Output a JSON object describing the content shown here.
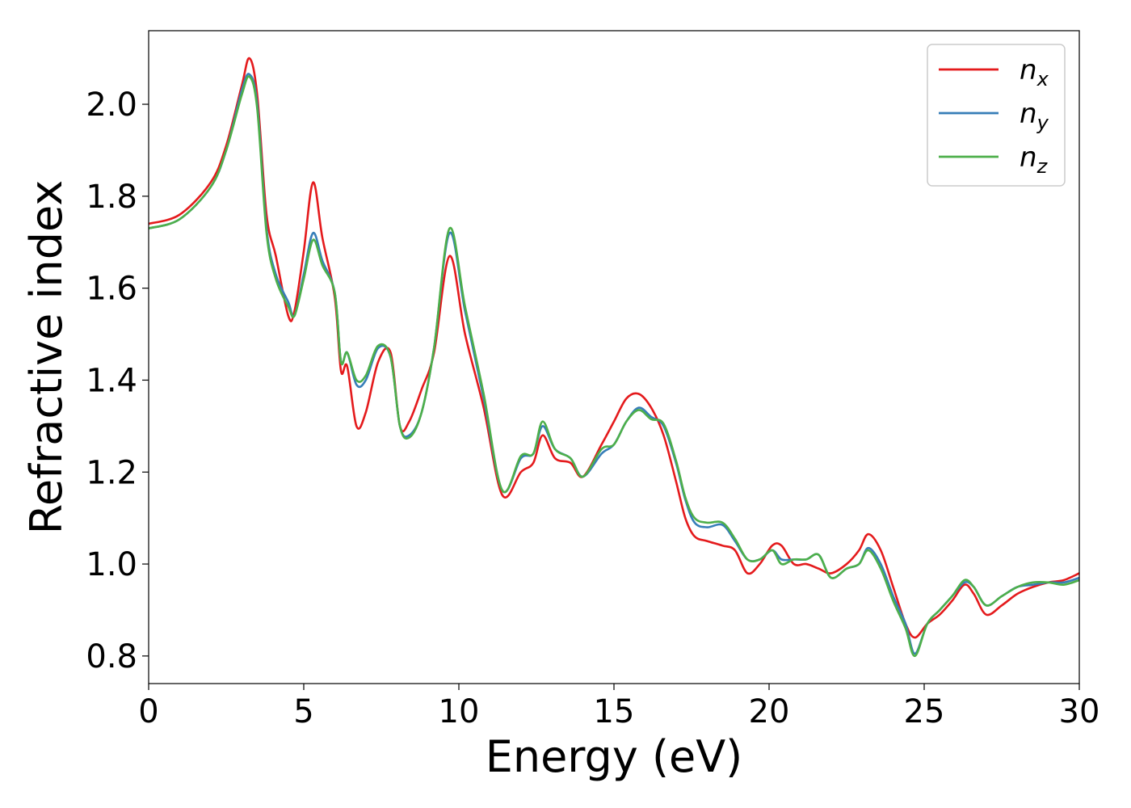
{
  "chart_data": {
    "type": "line",
    "title": "",
    "xlabel": "Energy (eV)",
    "ylabel": "Refractive index",
    "xlim": [
      0,
      30
    ],
    "ylim": [
      0.74,
      2.16
    ],
    "xticks": [
      0,
      5,
      10,
      15,
      20,
      25,
      30
    ],
    "yticks": [
      0.8,
      1.0,
      1.2,
      1.4,
      1.6,
      1.8,
      2.0
    ],
    "xtick_labels": [
      "0",
      "5",
      "10",
      "15",
      "20",
      "25",
      "30"
    ],
    "ytick_labels": [
      "0.8",
      "1.0",
      "1.2",
      "1.4",
      "1.6",
      "1.8",
      "2.0"
    ],
    "grid": false,
    "legend_placement": "top-right",
    "series": [
      {
        "name": "n_x",
        "label_base": "n",
        "label_sub": "x",
        "color": "#e41a1c",
        "x": [
          0,
          1,
          2,
          2.5,
          3.0,
          3.25,
          3.5,
          3.8,
          4.1,
          4.5,
          4.7,
          5.0,
          5.3,
          5.6,
          6.0,
          6.2,
          6.4,
          6.7,
          7.0,
          7.4,
          7.8,
          8.1,
          8.4,
          8.8,
          9.2,
          9.7,
          10.2,
          10.8,
          11.4,
          12.0,
          12.4,
          12.7,
          13.1,
          13.6,
          14.0,
          14.6,
          15.0,
          15.4,
          15.8,
          16.2,
          16.6,
          17.0,
          17.3,
          17.6,
          18.0,
          18.5,
          18.9,
          19.3,
          19.7,
          20.1,
          20.4,
          20.8,
          21.2,
          21.6,
          22.0,
          22.5,
          22.9,
          23.2,
          23.6,
          24.0,
          24.4,
          24.7,
          25.1,
          25.5,
          25.9,
          26.3,
          26.6,
          27.0,
          27.5,
          28.0,
          28.5,
          29.0,
          29.5,
          30.0
        ],
        "y": [
          1.74,
          1.76,
          1.83,
          1.91,
          2.04,
          2.1,
          2.02,
          1.76,
          1.67,
          1.54,
          1.55,
          1.68,
          1.83,
          1.71,
          1.58,
          1.42,
          1.43,
          1.3,
          1.33,
          1.44,
          1.46,
          1.3,
          1.31,
          1.38,
          1.46,
          1.67,
          1.5,
          1.34,
          1.15,
          1.2,
          1.22,
          1.28,
          1.23,
          1.22,
          1.19,
          1.26,
          1.31,
          1.36,
          1.37,
          1.34,
          1.28,
          1.18,
          1.1,
          1.06,
          1.05,
          1.04,
          1.03,
          0.98,
          1.0,
          1.04,
          1.04,
          1.0,
          1.0,
          0.99,
          0.98,
          1.0,
          1.03,
          1.065,
          1.03,
          0.95,
          0.87,
          0.84,
          0.87,
          0.89,
          0.92,
          0.955,
          0.935,
          0.89,
          0.91,
          0.935,
          0.95,
          0.96,
          0.965,
          0.98
        ]
      },
      {
        "name": "n_y",
        "label_base": "n",
        "label_sub": "y",
        "color": "#377eb8",
        "x": [
          0,
          1,
          2,
          2.5,
          3.0,
          3.25,
          3.5,
          3.8,
          4.1,
          4.5,
          4.7,
          5.0,
          5.3,
          5.6,
          6.0,
          6.2,
          6.4,
          6.7,
          7.0,
          7.4,
          7.8,
          8.1,
          8.4,
          8.8,
          9.2,
          9.7,
          10.2,
          10.8,
          11.4,
          12.0,
          12.4,
          12.7,
          13.1,
          13.6,
          14.0,
          14.6,
          15.0,
          15.4,
          15.8,
          16.2,
          16.6,
          17.0,
          17.3,
          17.6,
          18.0,
          18.5,
          18.9,
          19.3,
          19.7,
          20.1,
          20.4,
          20.8,
          21.2,
          21.6,
          22.0,
          22.5,
          22.9,
          23.2,
          23.6,
          24.0,
          24.4,
          24.7,
          25.1,
          25.5,
          25.9,
          26.3,
          26.6,
          27.0,
          27.5,
          28.0,
          28.5,
          29.0,
          29.5,
          30.0
        ],
        "y": [
          1.73,
          1.75,
          1.82,
          1.9,
          2.03,
          2.065,
          2.0,
          1.73,
          1.63,
          1.57,
          1.54,
          1.63,
          1.72,
          1.66,
          1.59,
          1.44,
          1.46,
          1.39,
          1.4,
          1.47,
          1.45,
          1.3,
          1.28,
          1.33,
          1.47,
          1.72,
          1.55,
          1.36,
          1.16,
          1.23,
          1.24,
          1.3,
          1.25,
          1.23,
          1.19,
          1.24,
          1.26,
          1.31,
          1.34,
          1.32,
          1.3,
          1.22,
          1.14,
          1.09,
          1.08,
          1.085,
          1.05,
          1.01,
          1.01,
          1.03,
          1.01,
          1.01,
          1.01,
          1.02,
          0.97,
          0.99,
          1.0,
          1.035,
          1.0,
          0.93,
          0.87,
          0.805,
          0.87,
          0.9,
          0.93,
          0.96,
          0.95,
          0.91,
          0.93,
          0.95,
          0.955,
          0.96,
          0.96,
          0.97
        ]
      },
      {
        "name": "n_z",
        "label_base": "n",
        "label_sub": "z",
        "color": "#4daf4a",
        "x": [
          0,
          1,
          2,
          2.5,
          3.0,
          3.25,
          3.5,
          3.8,
          4.1,
          4.5,
          4.7,
          5.0,
          5.3,
          5.6,
          6.0,
          6.2,
          6.4,
          6.7,
          7.0,
          7.4,
          7.8,
          8.1,
          8.4,
          8.8,
          9.2,
          9.7,
          10.2,
          10.8,
          11.4,
          12.0,
          12.4,
          12.7,
          13.1,
          13.6,
          14.0,
          14.6,
          15.0,
          15.4,
          15.8,
          16.2,
          16.6,
          17.0,
          17.3,
          17.6,
          18.0,
          18.5,
          18.9,
          19.3,
          19.7,
          20.1,
          20.4,
          20.8,
          21.2,
          21.6,
          22.0,
          22.5,
          22.9,
          23.2,
          23.6,
          24.0,
          24.4,
          24.7,
          25.1,
          25.5,
          25.9,
          26.3,
          26.6,
          27.0,
          27.5,
          28.0,
          28.5,
          29.0,
          29.5,
          30.0
        ],
        "y": [
          1.73,
          1.75,
          1.82,
          1.9,
          2.02,
          2.06,
          1.99,
          1.72,
          1.62,
          1.56,
          1.54,
          1.62,
          1.705,
          1.65,
          1.59,
          1.44,
          1.46,
          1.4,
          1.41,
          1.475,
          1.45,
          1.3,
          1.275,
          1.33,
          1.47,
          1.73,
          1.56,
          1.37,
          1.16,
          1.235,
          1.24,
          1.31,
          1.25,
          1.23,
          1.19,
          1.25,
          1.26,
          1.31,
          1.335,
          1.315,
          1.305,
          1.225,
          1.145,
          1.1,
          1.09,
          1.09,
          1.055,
          1.01,
          1.01,
          1.03,
          1.0,
          1.01,
          1.01,
          1.02,
          0.97,
          0.99,
          1.0,
          1.03,
          0.99,
          0.92,
          0.86,
          0.8,
          0.87,
          0.9,
          0.93,
          0.965,
          0.95,
          0.91,
          0.93,
          0.95,
          0.96,
          0.96,
          0.955,
          0.965
        ]
      }
    ]
  }
}
